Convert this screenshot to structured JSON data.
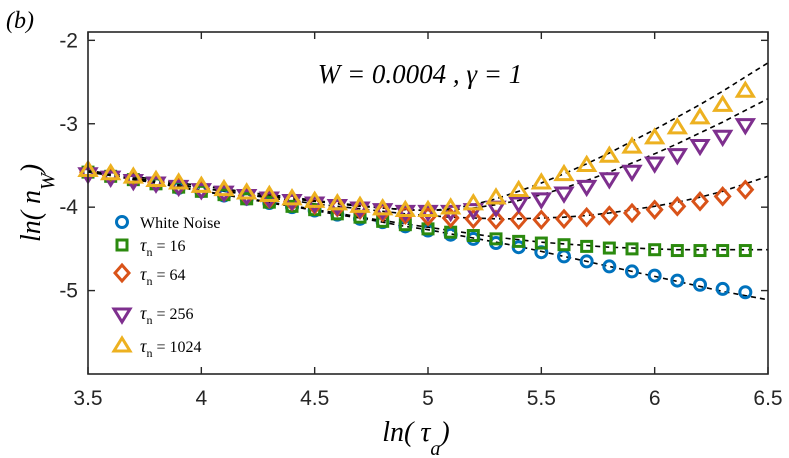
{
  "panel_label": "(b)",
  "chart_data": {
    "type": "scatter",
    "annotation": "W = 0.0004 , γ = 1",
    "xlabel": {
      "main": "ln( τ",
      "sub": "a",
      "tail": ")"
    },
    "ylabel": {
      "main": "ln( n",
      "sub": "W",
      "tail": ")"
    },
    "xlim": [
      3.5,
      6.5
    ],
    "ylim": [
      -6,
      -1.9
    ],
    "x_ticks": [
      3.5,
      4,
      4.5,
      5,
      5.5,
      6,
      6.5
    ],
    "x_tick_labels": [
      "3.5",
      "4",
      "4.5",
      "5",
      "5.5",
      "6",
      "6.5"
    ],
    "y_ticks": [
      -5,
      -4,
      -3,
      -2
    ],
    "y_tick_labels": [
      "-5",
      "-4",
      "-3",
      "-2"
    ],
    "x": [
      3.5,
      3.6,
      3.7,
      3.8,
      3.9,
      4.0,
      4.1,
      4.2,
      4.3,
      4.4,
      4.5,
      4.6,
      4.7,
      4.8,
      4.9,
      5.0,
      5.1,
      5.2,
      5.3,
      5.4,
      5.5,
      5.6,
      5.7,
      5.8,
      5.9,
      6.0,
      6.1,
      6.2,
      6.3,
      6.4
    ],
    "series": [
      {
        "name": "White Noise",
        "tau_symbol": "",
        "tau_sub": "",
        "tau_value": "",
        "marker": "circle",
        "color": "#0072BD",
        "values": [
          -3.58,
          -3.63,
          -3.67,
          -3.72,
          -3.77,
          -3.81,
          -3.86,
          -3.9,
          -3.95,
          -4.0,
          -4.04,
          -4.09,
          -4.14,
          -4.18,
          -4.23,
          -4.28,
          -4.33,
          -4.38,
          -4.43,
          -4.48,
          -4.54,
          -4.59,
          -4.65,
          -4.71,
          -4.77,
          -4.82,
          -4.88,
          -4.93,
          -4.98,
          -5.02
        ],
        "fit": [
          -3.57,
          -3.62,
          -3.67,
          -3.71,
          -3.76,
          -3.81,
          -3.85,
          -3.9,
          -3.95,
          -3.99,
          -4.04,
          -4.09,
          -4.13,
          -4.18,
          -4.23,
          -4.27,
          -4.32,
          -4.37,
          -4.42,
          -4.47,
          -4.53,
          -4.59,
          -4.65,
          -4.71,
          -4.77,
          -4.83,
          -4.89,
          -4.95,
          -5.01,
          -5.06
        ]
      },
      {
        "name": "",
        "tau_symbol": "τ",
        "tau_sub": "n",
        "tau_value": " = 16",
        "marker": "square",
        "color": "#2B8A0E",
        "values": [
          -3.58,
          -3.63,
          -3.67,
          -3.72,
          -3.76,
          -3.81,
          -3.85,
          -3.9,
          -3.94,
          -3.99,
          -4.03,
          -4.08,
          -4.12,
          -4.17,
          -4.21,
          -4.26,
          -4.3,
          -4.34,
          -4.38,
          -4.41,
          -4.43,
          -4.45,
          -4.47,
          -4.49,
          -4.5,
          -4.51,
          -4.52,
          -4.52,
          -4.52,
          -4.52
        ],
        "fit": [
          -3.57,
          -3.62,
          -3.66,
          -3.71,
          -3.75,
          -3.8,
          -3.85,
          -3.89,
          -3.94,
          -3.98,
          -4.03,
          -4.07,
          -4.12,
          -4.16,
          -4.2,
          -4.24,
          -4.28,
          -4.32,
          -4.36,
          -4.39,
          -4.42,
          -4.44,
          -4.46,
          -4.48,
          -4.49,
          -4.5,
          -4.51,
          -4.51,
          -4.51,
          -4.51
        ]
      },
      {
        "name": "",
        "tau_symbol": "τ",
        "tau_sub": "n",
        "tau_value": " = 64",
        "marker": "diamond",
        "color": "#D95319",
        "values": [
          -3.58,
          -3.62,
          -3.66,
          -3.7,
          -3.74,
          -3.78,
          -3.82,
          -3.86,
          -3.9,
          -3.93,
          -3.97,
          -4.0,
          -4.03,
          -4.06,
          -4.09,
          -4.11,
          -4.13,
          -4.14,
          -4.15,
          -4.15,
          -4.15,
          -4.14,
          -4.12,
          -4.1,
          -4.07,
          -4.03,
          -3.99,
          -3.93,
          -3.87,
          -3.79
        ],
        "fit": [
          -3.57,
          -3.61,
          -3.65,
          -3.69,
          -3.73,
          -3.77,
          -3.81,
          -3.85,
          -3.89,
          -3.92,
          -3.96,
          -3.99,
          -4.02,
          -4.05,
          -4.08,
          -4.1,
          -4.12,
          -4.13,
          -4.14,
          -4.14,
          -4.13,
          -4.12,
          -4.1,
          -4.07,
          -4.03,
          -3.99,
          -3.94,
          -3.88,
          -3.81,
          -3.72
        ]
      },
      {
        "name": "",
        "tau_symbol": "τ",
        "tau_sub": "n",
        "tau_value": " = 256",
        "marker": "triangle-down",
        "color": "#7E2F8E",
        "values": [
          -3.6,
          -3.64,
          -3.68,
          -3.71,
          -3.75,
          -3.79,
          -3.82,
          -3.86,
          -3.89,
          -3.92,
          -3.95,
          -3.98,
          -4.01,
          -4.03,
          -4.05,
          -4.05,
          -4.05,
          -4.03,
          -4.0,
          -3.95,
          -3.9,
          -3.83,
          -3.75,
          -3.66,
          -3.57,
          -3.47,
          -3.37,
          -3.26,
          -3.15,
          -3.01
        ],
        "fit": [
          -3.58,
          -3.62,
          -3.66,
          -3.69,
          -3.73,
          -3.77,
          -3.8,
          -3.84,
          -3.87,
          -3.9,
          -3.93,
          -3.96,
          -3.99,
          -4.01,
          -4.03,
          -4.04,
          -4.03,
          -4.01,
          -3.97,
          -3.92,
          -3.85,
          -3.77,
          -3.68,
          -3.58,
          -3.47,
          -3.36,
          -3.24,
          -3.11,
          -2.98,
          -2.84
        ]
      },
      {
        "name": "",
        "tau_symbol": "τ",
        "tau_sub": "n",
        "tau_value": " = 1024",
        "marker": "triangle-up",
        "color": "#EDB120",
        "values": [
          -3.56,
          -3.6,
          -3.64,
          -3.68,
          -3.71,
          -3.75,
          -3.79,
          -3.83,
          -3.86,
          -3.9,
          -3.93,
          -3.96,
          -3.99,
          -4.02,
          -4.04,
          -4.04,
          -4.01,
          -3.96,
          -3.89,
          -3.8,
          -3.71,
          -3.61,
          -3.5,
          -3.39,
          -3.28,
          -3.17,
          -3.05,
          -2.93,
          -2.78,
          -2.61
        ],
        "fit": [
          -3.56,
          -3.6,
          -3.63,
          -3.67,
          -3.71,
          -3.74,
          -3.78,
          -3.82,
          -3.85,
          -3.88,
          -3.92,
          -3.95,
          -3.98,
          -4.01,
          -4.03,
          -4.04,
          -4.02,
          -3.97,
          -3.9,
          -3.81,
          -3.71,
          -3.6,
          -3.48,
          -3.35,
          -3.21,
          -3.07,
          -2.92,
          -2.77,
          -2.61,
          -2.44
        ]
      }
    ],
    "legend_position": "lower-left"
  }
}
